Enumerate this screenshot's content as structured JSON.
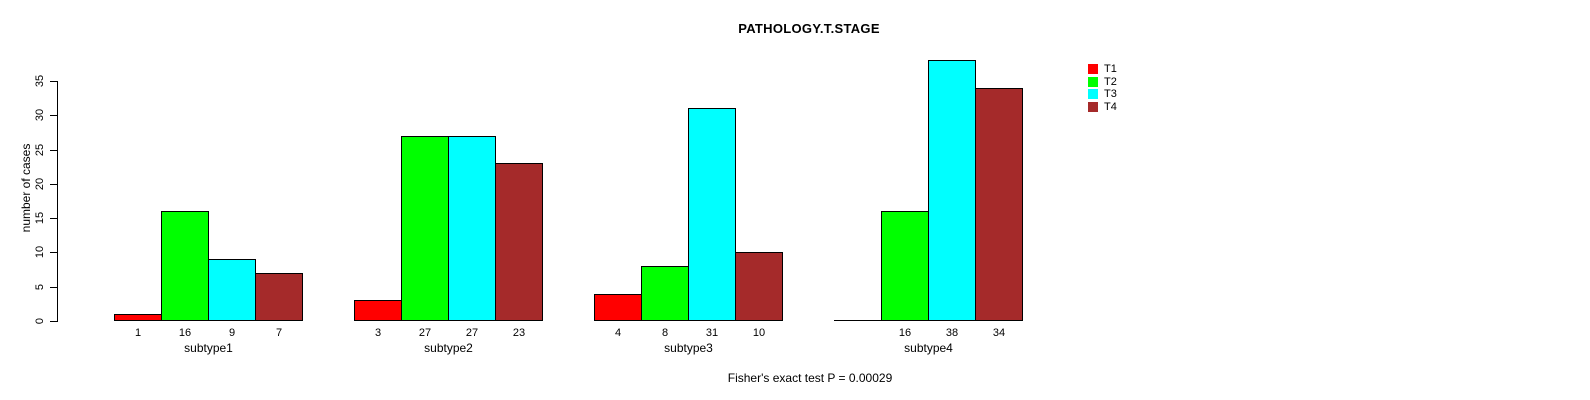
{
  "chart_data": {
    "type": "bar",
    "title": "PATHOLOGY.T.STAGE",
    "xlabel": "",
    "ylabel": "number of cases",
    "annotation": "Fisher's exact test P = 0.00029",
    "categories": [
      "subtype1",
      "subtype2",
      "subtype3",
      "subtype4"
    ],
    "series": [
      {
        "name": "T1",
        "color": "#FF0000",
        "values": [
          1,
          3,
          4,
          0
        ]
      },
      {
        "name": "T2",
        "color": "#00FF00",
        "values": [
          16,
          27,
          8,
          16
        ]
      },
      {
        "name": "T3",
        "color": "#00FFFF",
        "values": [
          9,
          27,
          31,
          38
        ]
      },
      {
        "name": "T4",
        "color": "#A52A2A",
        "values": [
          7,
          23,
          10,
          34
        ]
      }
    ],
    "ylim": [
      0,
      35
    ],
    "yticks": [
      0,
      5,
      10,
      15,
      20,
      25,
      30,
      35
    ],
    "bar_value_labels_shown": true,
    "zero_bars_unlabeled": true,
    "grid": false,
    "legend_position": "top-right",
    "background_color": "#FFFFFF",
    "bar_border_color": "#000000"
  }
}
